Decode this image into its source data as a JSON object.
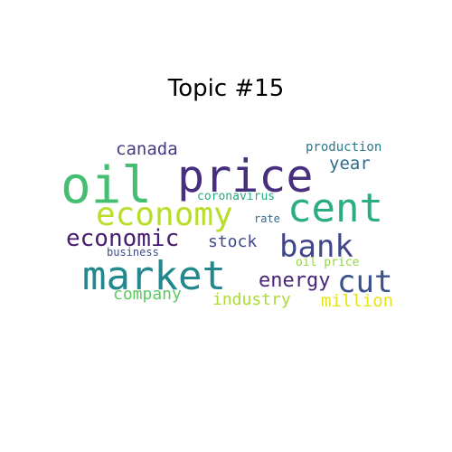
{
  "title": "Topic #15",
  "words": [
    {
      "text": "price",
      "color": "#472f7d"
    },
    {
      "text": "oil",
      "color": "#45be71"
    },
    {
      "text": "cent",
      "color": "#2aae80"
    },
    {
      "text": "economy",
      "color": "#b8de29"
    },
    {
      "text": "market",
      "color": "#22888e"
    },
    {
      "text": "bank",
      "color": "#404688"
    },
    {
      "text": "cut",
      "color": "#3b518b"
    },
    {
      "text": "economic",
      "color": "#481d6f"
    },
    {
      "text": "energy",
      "color": "#482576"
    },
    {
      "text": "canada",
      "color": "#443a83"
    },
    {
      "text": "year",
      "color": "#2f6c8e"
    },
    {
      "text": "stock",
      "color": "#3e4a89"
    },
    {
      "text": "industry",
      "color": "#aadc32"
    },
    {
      "text": "company",
      "color": "#5ec962"
    },
    {
      "text": "million",
      "color": "#e4e419"
    },
    {
      "text": "production",
      "color": "#2a788e"
    },
    {
      "text": "coronavirus",
      "color": "#25ab82"
    },
    {
      "text": "rate",
      "color": "#31688e"
    },
    {
      "text": "business",
      "color": "#3e4c8a"
    },
    {
      "text": "oil price",
      "color": "#93d741"
    }
  ]
}
